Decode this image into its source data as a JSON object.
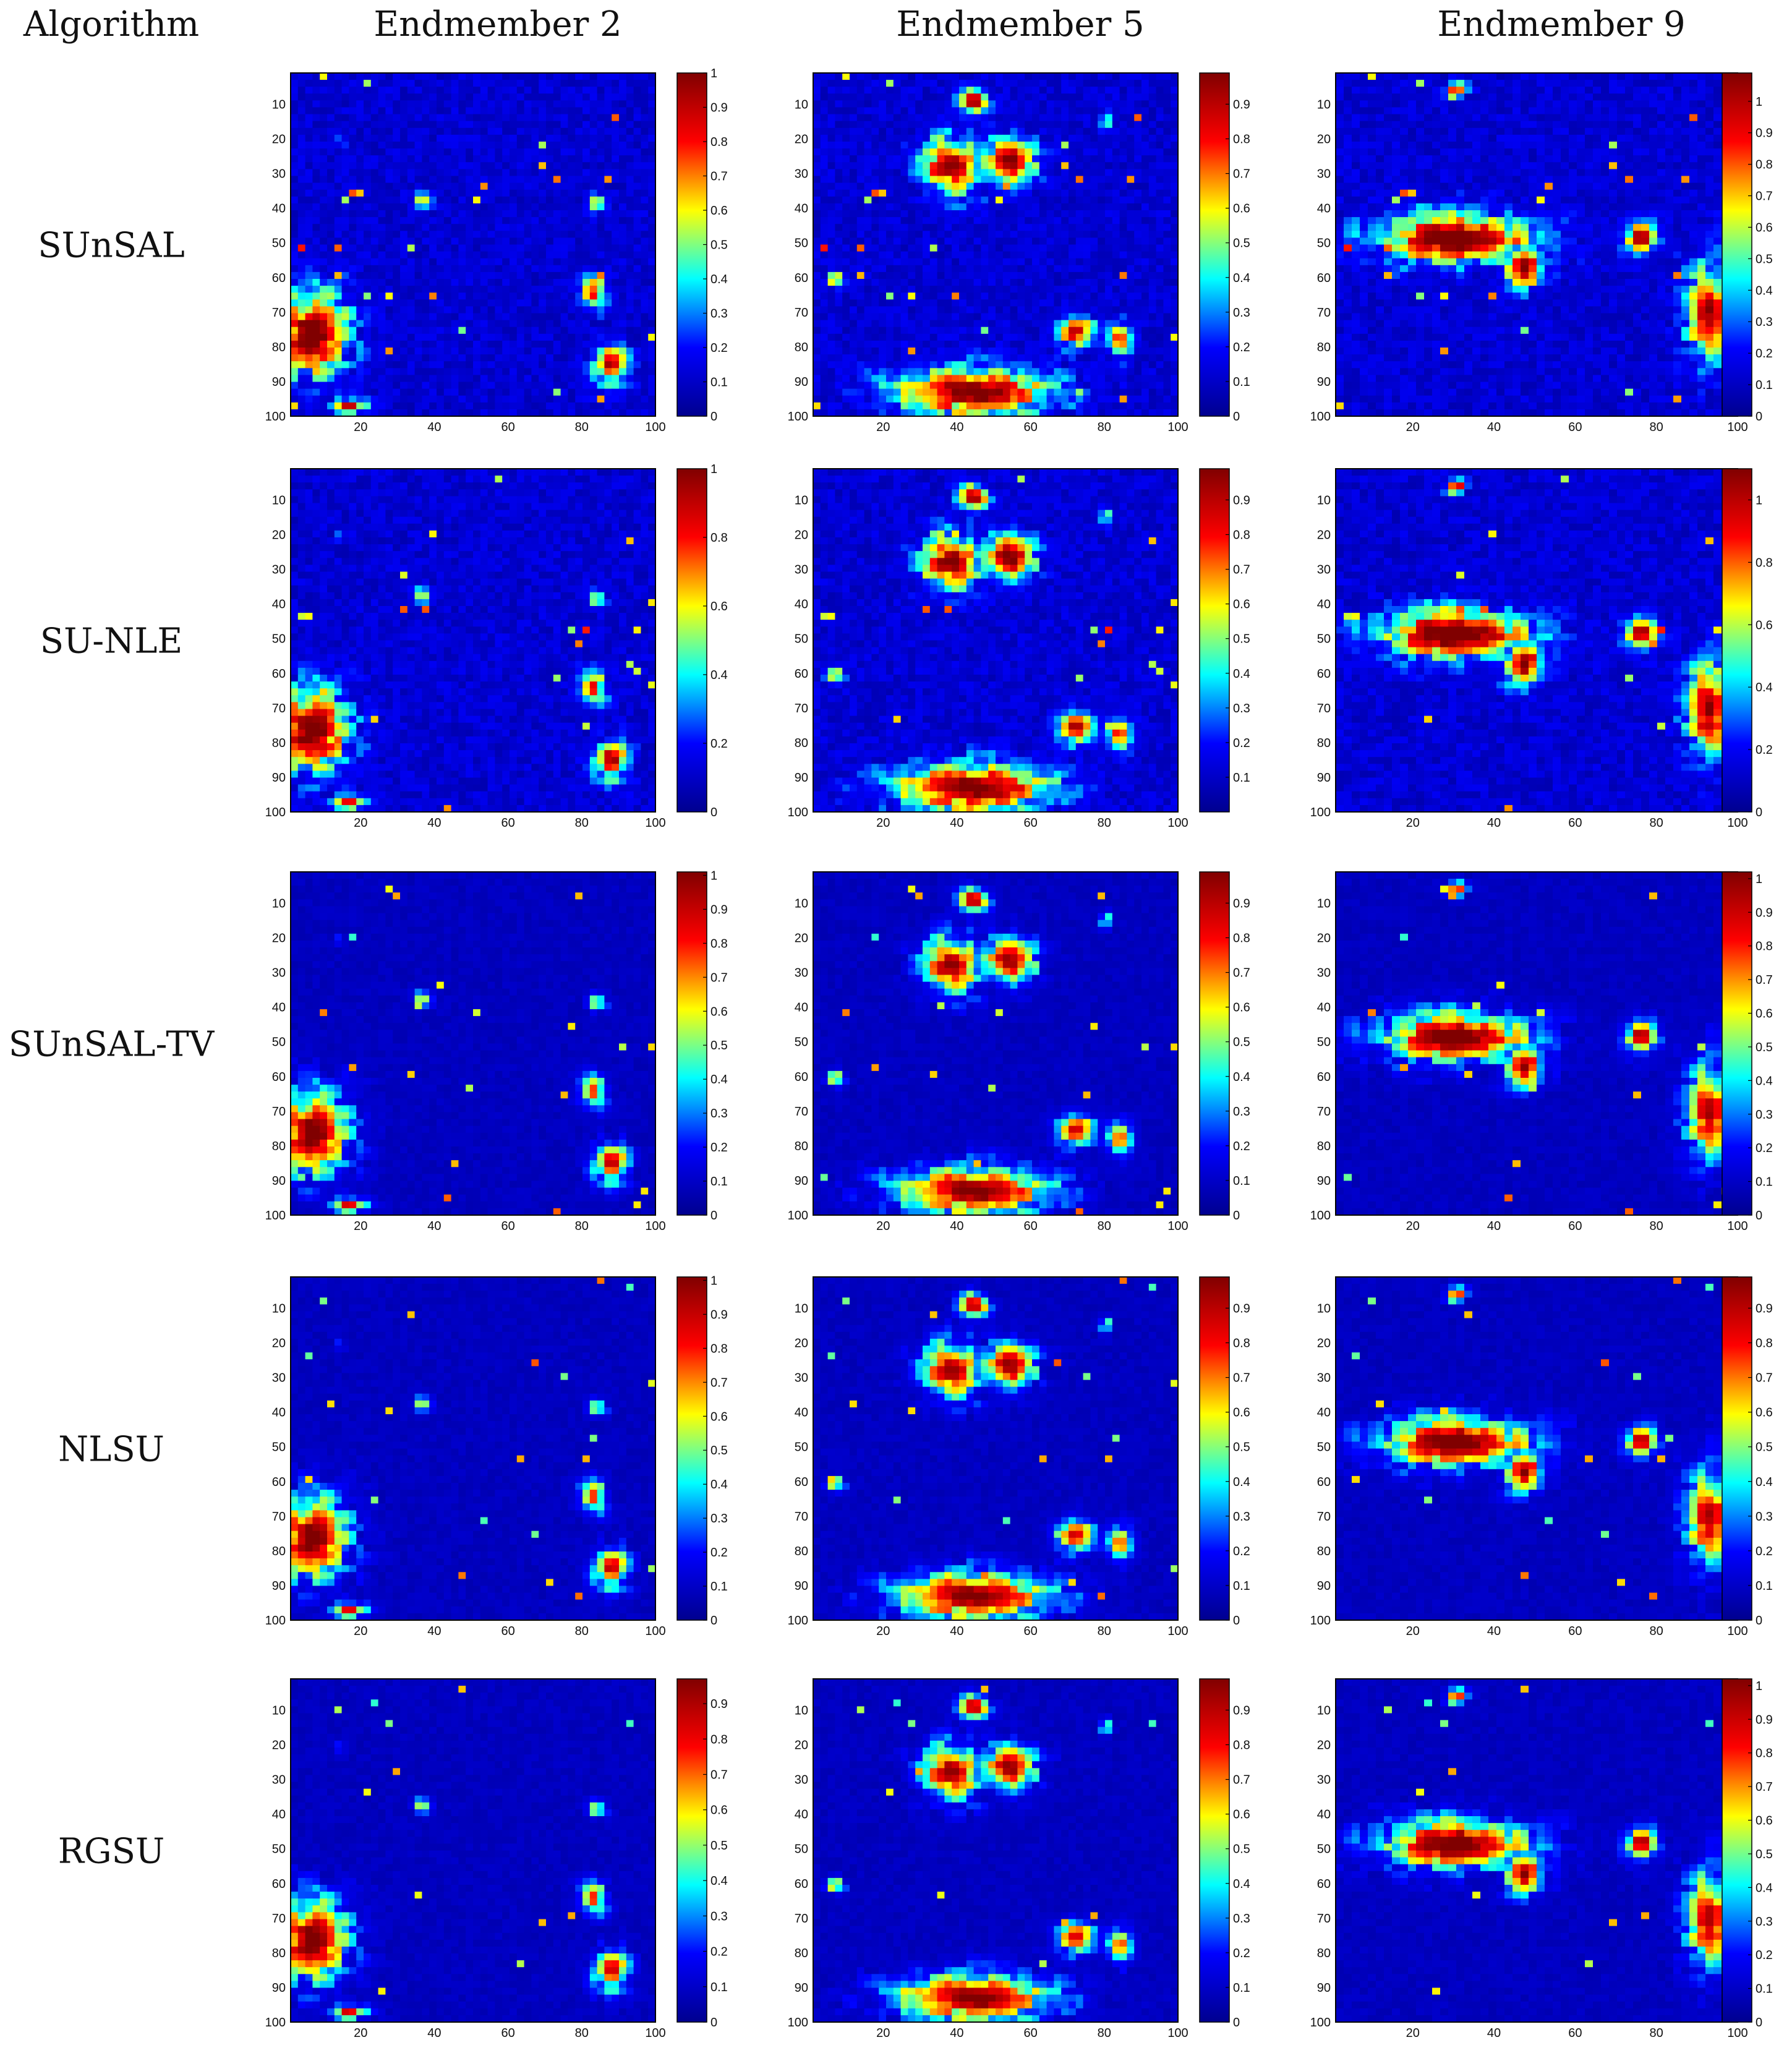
{
  "header": {
    "algorithm_label": "Algorithm",
    "columns": [
      "Endmember 2",
      "Endmember 5",
      "Endmember 9"
    ]
  },
  "rows": [
    "SUnSAL",
    "SU-NLE",
    "SUnSAL-TV",
    "NLSU",
    "RGSU"
  ],
  "colormap": {
    "name": "jet",
    "stops": [
      "#00008f",
      "#0000ff",
      "#00ffff",
      "#ffff00",
      "#ff0000",
      "#800000"
    ]
  },
  "chart_data": {
    "type": "heatmap",
    "description_note": "Abundance maps (100 x 100 pixels) per algorithm (rows) and endmember (columns); jet colormap",
    "x_ticks": [
      20,
      40,
      60,
      80,
      100
    ],
    "y_ticks": [
      10,
      20,
      30,
      40,
      50,
      60,
      70,
      80,
      90,
      100
    ],
    "xlim": [
      1,
      100
    ],
    "ylim": [
      1,
      100
    ],
    "colorbars": {
      "SUnSAL": {
        "Endmember 2": {
          "ticks": [
            "0",
            "0.1",
            "0.2",
            "0.3",
            "0.4",
            "0.5",
            "0.6",
            "0.7",
            "0.8",
            "0.9",
            "1"
          ],
          "range": [
            0,
            1
          ]
        },
        "Endmember 5": {
          "ticks": [
            "0",
            "0.1",
            "0.2",
            "0.3",
            "0.4",
            "0.5",
            "0.6",
            "0.7",
            "0.8",
            "0.9"
          ],
          "range": [
            0,
            0.99
          ]
        },
        "Endmember 9": {
          "ticks": [
            "0",
            "0.1",
            "0.2",
            "0.3",
            "0.4",
            "0.5",
            "0.6",
            "0.7",
            "0.8",
            "0.9",
            "1"
          ],
          "range": [
            0,
            1.09
          ]
        }
      },
      "SU-NLE": {
        "Endmember 2": {
          "ticks": [
            "0",
            "0.2",
            "0.4",
            "0.6",
            "0.8",
            "1"
          ],
          "range": [
            0,
            1
          ]
        },
        "Endmember 5": {
          "ticks": [
            "0.1",
            "0.2",
            "0.3",
            "0.4",
            "0.5",
            "0.6",
            "0.7",
            "0.8",
            "0.9"
          ],
          "range": [
            0,
            0.99
          ]
        },
        "Endmember 9": {
          "ticks": [
            "0",
            "0.2",
            "0.4",
            "0.6",
            "0.8",
            "1"
          ],
          "range": [
            0,
            1.1
          ]
        }
      },
      "SUnSAL-TV": {
        "Endmember 2": {
          "ticks": [
            "0",
            "0.1",
            "0.2",
            "0.3",
            "0.4",
            "0.5",
            "0.6",
            "0.7",
            "0.8",
            "0.9",
            "1"
          ],
          "range": [
            0,
            1.01
          ]
        },
        "Endmember 5": {
          "ticks": [
            "0",
            "0.1",
            "0.2",
            "0.3",
            "0.4",
            "0.5",
            "0.6",
            "0.7",
            "0.8",
            "0.9"
          ],
          "range": [
            0,
            0.99
          ]
        },
        "Endmember 9": {
          "ticks": [
            "0",
            "0.1",
            "0.2",
            "0.3",
            "0.4",
            "0.5",
            "0.6",
            "0.7",
            "0.8",
            "0.9",
            "1"
          ],
          "range": [
            0,
            1.02
          ]
        }
      },
      "NLSU": {
        "Endmember 2": {
          "ticks": [
            "0",
            "0.1",
            "0.2",
            "0.3",
            "0.4",
            "0.5",
            "0.6",
            "0.7",
            "0.8",
            "0.9",
            "1"
          ],
          "range": [
            0,
            1.01
          ]
        },
        "Endmember 5": {
          "ticks": [
            "0",
            "0.1",
            "0.2",
            "0.3",
            "0.4",
            "0.5",
            "0.6",
            "0.7",
            "0.8",
            "0.9"
          ],
          "range": [
            0,
            0.99
          ]
        },
        "Endmember 9": {
          "ticks": [
            "0",
            "0.1",
            "0.2",
            "0.3",
            "0.4",
            "0.5",
            "0.6",
            "0.7",
            "0.8",
            "0.9"
          ],
          "range": [
            0,
            0.99
          ]
        }
      },
      "RGSU": {
        "Endmember 2": {
          "ticks": [
            "0",
            "0.1",
            "0.2",
            "0.3",
            "0.4",
            "0.5",
            "0.6",
            "0.7",
            "0.8",
            "0.9"
          ],
          "range": [
            0,
            0.97
          ]
        },
        "Endmember 5": {
          "ticks": [
            "0",
            "0.1",
            "0.2",
            "0.3",
            "0.4",
            "0.5",
            "0.6",
            "0.7",
            "0.8",
            "0.9"
          ],
          "range": [
            0,
            0.99
          ]
        },
        "Endmember 9": {
          "ticks": [
            "0",
            "0.1",
            "0.2",
            "0.3",
            "0.4",
            "0.5",
            "0.6",
            "0.7",
            "0.8",
            "0.9",
            "1"
          ],
          "range": [
            0,
            1.02
          ]
        }
      }
    },
    "approximate_high_abundance_regions": {
      "Endmember 2": [
        {
          "x": 6,
          "y": 76,
          "rx": 8,
          "ry": 10,
          "peak": 1.0
        },
        {
          "x": 88,
          "y": 85,
          "rx": 4,
          "ry": 5,
          "peak": 0.85
        },
        {
          "x": 83,
          "y": 64,
          "rx": 3,
          "ry": 4,
          "peak": 0.7
        },
        {
          "x": 84,
          "y": 38,
          "rx": 2,
          "ry": 2,
          "peak": 0.6
        },
        {
          "x": 36,
          "y": 37,
          "rx": 2,
          "ry": 2,
          "peak": 0.6
        },
        {
          "x": 16,
          "y": 97,
          "rx": 4,
          "ry": 2,
          "peak": 0.8
        },
        {
          "x": 14,
          "y": 20,
          "rx": 1,
          "ry": 1,
          "peak": 0.4
        }
      ],
      "Endmember 5": [
        {
          "x": 44,
          "y": 8,
          "rx": 4,
          "ry": 3,
          "peak": 0.9
        },
        {
          "x": 38,
          "y": 27,
          "rx": 7,
          "ry": 7,
          "peak": 0.9
        },
        {
          "x": 54,
          "y": 26,
          "rx": 6,
          "ry": 6,
          "peak": 0.9
        },
        {
          "x": 44,
          "y": 93,
          "rx": 18,
          "ry": 6,
          "peak": 0.95
        },
        {
          "x": 72,
          "y": 75,
          "rx": 4,
          "ry": 4,
          "peak": 0.8
        },
        {
          "x": 84,
          "y": 78,
          "rx": 3,
          "ry": 4,
          "peak": 0.7
        },
        {
          "x": 6,
          "y": 60,
          "rx": 2,
          "ry": 2,
          "peak": 0.7
        },
        {
          "x": 80,
          "y": 14,
          "rx": 1,
          "ry": 2,
          "peak": 0.7
        }
      ],
      "Endmember 9": [
        {
          "x": 30,
          "y": 48,
          "rx": 16,
          "ry": 6,
          "peak": 1.0
        },
        {
          "x": 47,
          "y": 57,
          "rx": 4,
          "ry": 5,
          "peak": 0.9
        },
        {
          "x": 76,
          "y": 48,
          "rx": 3,
          "ry": 4,
          "peak": 0.95
        },
        {
          "x": 93,
          "y": 70,
          "rx": 5,
          "ry": 12,
          "peak": 0.85
        },
        {
          "x": 30,
          "y": 5,
          "rx": 2,
          "ry": 2,
          "peak": 0.8
        }
      ]
    }
  }
}
